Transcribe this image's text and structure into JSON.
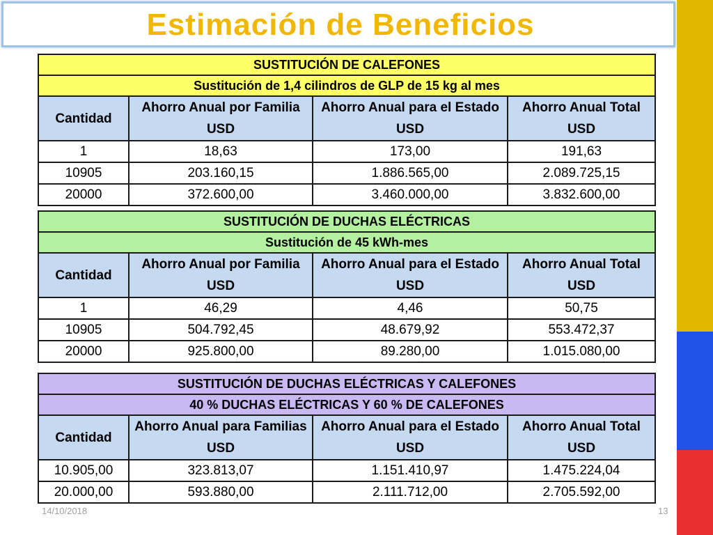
{
  "title": "Estimación de Beneficios",
  "colors": {
    "title": "#f2b705",
    "flag_yellow": "#e0b800",
    "flag_blue": "#1f52e6",
    "flag_red": "#e83030",
    "header_blue": "#c5d9f1"
  },
  "columns": {
    "cantidad": "Cantidad",
    "usd": "USD",
    "estado": "Ahorro Anual para el Estado",
    "total": "Ahorro Anual Total"
  },
  "tables": [
    {
      "heading": "SUSTITUCIÓN DE CALEFONES",
      "subheading": "Sustitución de 1,4 cilindros de GLP de 15 kg al mes",
      "familia_label": "Ahorro Anual por Familia",
      "header_color": "#ffff66",
      "rows": [
        [
          "1",
          "18,63",
          "173,00",
          "191,63"
        ],
        [
          "10905",
          "203.160,15",
          "1.886.565,00",
          "2.089.725,15"
        ],
        [
          "20000",
          "372.600,00",
          "3.460.000,00",
          "3.832.600,00"
        ]
      ]
    },
    {
      "heading": "SUSTITUCIÓN DE DUCHAS ELÉCTRICAS",
      "subheading": "Sustitución de 45 kWh-mes",
      "familia_label": "Ahorro Anual por Familia",
      "header_color": "#b3f0a0",
      "rows": [
        [
          "1",
          "46,29",
          "4,46",
          "50,75"
        ],
        [
          "10905",
          "504.792,45",
          "48.679,92",
          "553.472,37"
        ],
        [
          "20000",
          "925.800,00",
          "89.280,00",
          "1.015.080,00"
        ]
      ]
    },
    {
      "heading": "SUSTITUCIÓN DE DUCHAS ELÉCTRICAS Y CALEFONES",
      "subheading": "40 % DUCHAS ELÉCTRICAS Y 60 % DE CALEFONES",
      "familia_label": "Ahorro Anual para Familias",
      "header_color": "#c9b8f2",
      "rows": [
        [
          "10.905,00",
          "323.813,07",
          "1.151.410,97",
          "1.475.224,04"
        ],
        [
          "20.000,00",
          "593.880,00",
          "2.111.712,00",
          "2.705.592,00"
        ]
      ]
    }
  ],
  "footer": {
    "date": "14/10/2018",
    "page": "13"
  }
}
